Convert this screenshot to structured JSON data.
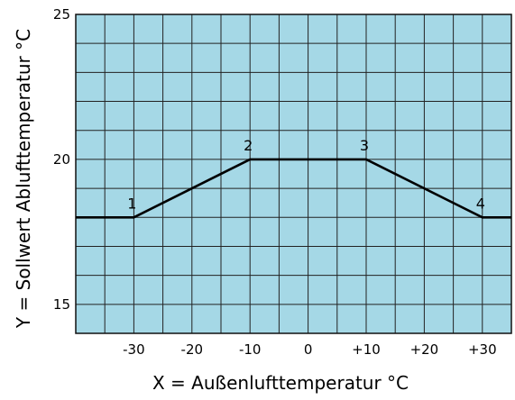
{
  "chart_data": {
    "type": "line",
    "xlabel": "X = Außenlufttemperatur °C",
    "ylabel": "Y = Sollwert Ablufttemperatur °C",
    "xlim": [
      -40,
      35
    ],
    "ylim": [
      14,
      25
    ],
    "x_ticks": [
      {
        "value": -30,
        "label": "-30"
      },
      {
        "value": -20,
        "label": "-20"
      },
      {
        "value": -10,
        "label": "-10"
      },
      {
        "value": 0,
        "label": "0"
      },
      {
        "value": 10,
        "label": "+10"
      },
      {
        "value": 20,
        "label": "+20"
      },
      {
        "value": 30,
        "label": "+30"
      }
    ],
    "y_ticks": [
      {
        "value": 15,
        "label": "15"
      },
      {
        "value": 20,
        "label": "20"
      },
      {
        "value": 25,
        "label": "25"
      }
    ],
    "grid": true,
    "grid_step_x": 5,
    "grid_step_y": 1,
    "plot_background": "#a5d8e6",
    "grid_color": "#222222",
    "line_color": "#000000",
    "series": [
      {
        "x": [
          -40,
          -30,
          -10,
          10,
          30,
          35
        ],
        "y": [
          18,
          18,
          20,
          20,
          18,
          18
        ]
      }
    ],
    "annotations": [
      {
        "label": "1",
        "x": -30,
        "y": 18
      },
      {
        "label": "2",
        "x": -10,
        "y": 20
      },
      {
        "label": "3",
        "x": 10,
        "y": 20
      },
      {
        "label": "4",
        "x": 30,
        "y": 18
      }
    ]
  }
}
